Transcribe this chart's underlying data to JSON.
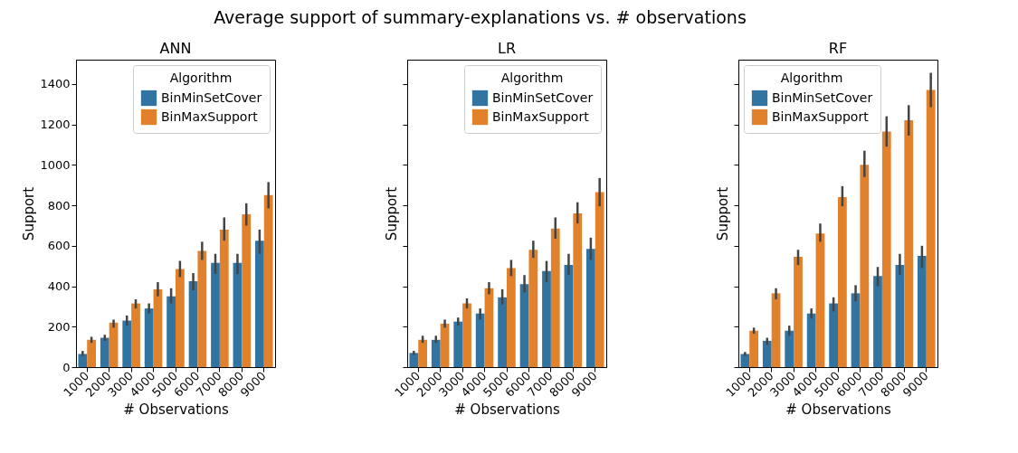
{
  "chart_data": [
    {
      "type": "bar",
      "title": "ANN",
      "xlabel": "# Observations",
      "ylabel": "Support",
      "legend_title": "Algorithm",
      "legend": "top right",
      "annotations": [
        "Average support of summary-explanations vs. # observations"
      ],
      "categories": [
        "1000",
        "2000",
        "3000",
        "4000",
        "5000",
        "6000",
        "7000",
        "8000",
        "9000"
      ],
      "ylim": [
        0,
        1520
      ],
      "yticks": [
        0,
        200,
        400,
        600,
        800,
        1000,
        1200,
        1400
      ],
      "series": [
        {
          "name": "BinMinSetCover",
          "color": "#3274a1",
          "values": [
            65,
            145,
            230,
            290,
            350,
            425,
            515,
            515,
            625
          ],
          "errors": [
            [
              55,
              80
            ],
            [
              130,
              160
            ],
            [
              205,
              255
            ],
            [
              265,
              315
            ],
            [
              315,
              390
            ],
            [
              380,
              465
            ],
            [
              460,
              560
            ],
            [
              460,
              560
            ],
            [
              560,
              680
            ]
          ]
        },
        {
          "name": "BinMaxSupport",
          "color": "#e1812c",
          "values": [
            135,
            220,
            315,
            385,
            485,
            575,
            680,
            755,
            850
          ],
          "errors": [
            [
              120,
              150
            ],
            [
              195,
              235
            ],
            [
              290,
              335
            ],
            [
              350,
              420
            ],
            [
              445,
              525
            ],
            [
              530,
              620
            ],
            [
              625,
              740
            ],
            [
              700,
              810
            ],
            [
              785,
              915
            ]
          ]
        }
      ]
    },
    {
      "type": "bar",
      "title": "LR",
      "xlabel": "# Observations",
      "ylabel": "Support",
      "legend_title": "Algorithm",
      "legend": "top right",
      "tick_labels": "x",
      "categories": [
        "1000",
        "2000",
        "3000",
        "4000",
        "5000",
        "6000",
        "7000",
        "8000",
        "9000"
      ],
      "ylim": [
        0,
        1520
      ],
      "yticks": [
        0,
        200,
        400,
        600,
        800,
        1000,
        1200,
        1400
      ],
      "series": [
        {
          "name": "BinMinSetCover",
          "color": "#3274a1",
          "values": [
            70,
            135,
            225,
            265,
            345,
            410,
            475,
            505,
            585
          ],
          "errors": [
            [
              60,
              80
            ],
            [
              120,
              155
            ],
            [
              205,
              245
            ],
            [
              235,
              290
            ],
            [
              310,
              385
            ],
            [
              370,
              455
            ],
            [
              420,
              525
            ],
            [
              455,
              560
            ],
            [
              530,
              640
            ]
          ]
        },
        {
          "name": "BinMaxSupport",
          "color": "#e1812c",
          "values": [
            135,
            215,
            315,
            390,
            490,
            580,
            685,
            760,
            865
          ],
          "errors": [
            [
              120,
              155
            ],
            [
              195,
              235
            ],
            [
              290,
              340
            ],
            [
              360,
              420
            ],
            [
              450,
              530
            ],
            [
              540,
              625
            ],
            [
              635,
              740
            ],
            [
              710,
              815
            ],
            [
              795,
              935
            ]
          ]
        }
      ]
    },
    {
      "type": "bar",
      "title": "RF",
      "xlabel": "# Observations",
      "ylabel": "Support",
      "legend_title": "Algorithm",
      "legend": "top left",
      "tick_labels": "x",
      "categories": [
        "1000",
        "2000",
        "3000",
        "4000",
        "5000",
        "6000",
        "7000",
        "8000",
        "9000"
      ],
      "ylim": [
        0,
        1520
      ],
      "yticks": [
        0,
        200,
        400,
        600,
        800,
        1000,
        1200,
        1400
      ],
      "series": [
        {
          "name": "BinMinSetCover",
          "color": "#3274a1",
          "values": [
            65,
            130,
            180,
            265,
            315,
            365,
            450,
            505,
            550
          ],
          "errors": [
            [
              55,
              75
            ],
            [
              110,
              145
            ],
            [
              155,
              205
            ],
            [
              240,
              290
            ],
            [
              275,
              345
            ],
            [
              325,
              405
            ],
            [
              400,
              495
            ],
            [
              455,
              560
            ],
            [
              490,
              600
            ]
          ]
        },
        {
          "name": "BinMaxSupport",
          "color": "#e1812c",
          "values": [
            180,
            365,
            545,
            660,
            840,
            1000,
            1165,
            1220,
            1370
          ],
          "errors": [
            [
              165,
              195
            ],
            [
              335,
              390
            ],
            [
              505,
              580
            ],
            [
              620,
              710
            ],
            [
              795,
              895
            ],
            [
              940,
              1070
            ],
            [
              1090,
              1240
            ],
            [
              1145,
              1295
            ],
            [
              1285,
              1455
            ]
          ]
        }
      ]
    }
  ]
}
